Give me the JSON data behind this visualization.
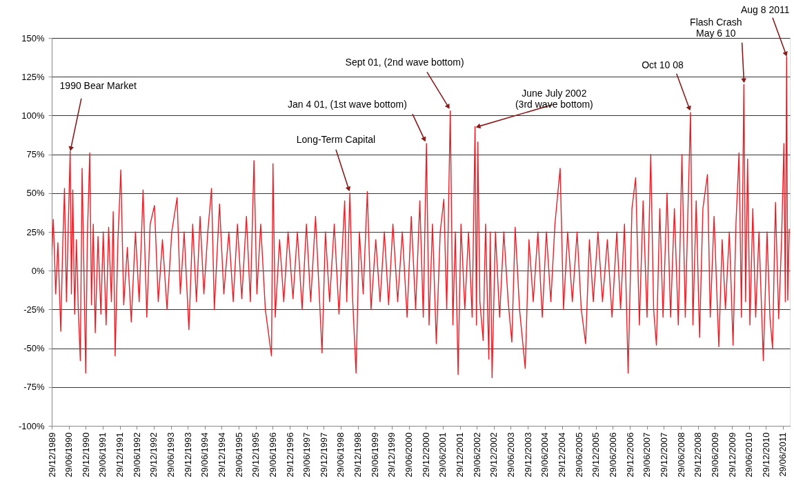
{
  "chart_data": {
    "type": "line",
    "x": [
      "1989-12-29",
      "1990-01-15",
      "1990-02-10",
      "1990-03-05",
      "1990-04-05",
      "1990-04-25",
      "1990-05-15",
      "1990-06-05",
      "1990-06-25",
      "1990-07-15",
      "1990-07-28",
      "1990-08-12",
      "1990-09-01",
      "1990-09-20",
      "1990-10-10",
      "1990-11-01",
      "1990-11-20",
      "1990-12-29",
      "1991-01-15",
      "1991-02-10",
      "1991-03-01",
      "1991-03-20",
      "1991-04-10",
      "1991-05-10",
      "1991-06-10",
      "1991-07-05",
      "1991-08-05",
      "1991-09-01",
      "1991-10-01",
      "1991-10-20",
      "1991-11-10",
      "1991-12-10",
      "1992-01-10",
      "1992-02-10",
      "1992-03-20",
      "1992-05-01",
      "1992-06-15",
      "1992-07-25",
      "1992-09-05",
      "1992-10-15",
      "1992-11-20",
      "1993-01-05",
      "1993-02-15",
      "1993-04-01",
      "1993-05-20",
      "1993-07-10",
      "1993-09-05",
      "1993-10-10",
      "1993-11-20",
      "1994-01-10",
      "1994-02-20",
      "1994-04-01",
      "1994-05-10",
      "1994-06-20",
      "1994-08-01",
      "1994-09-10",
      "1994-10-10",
      "1994-12-05",
      "1995-01-20",
      "1995-03-15",
      "1995-05-01",
      "1995-06-15",
      "1995-08-01",
      "1995-09-20",
      "1995-11-01",
      "1995-12-10",
      "1996-01-10",
      "1996-02-20",
      "1996-04-10",
      "1996-06-15",
      "1996-07-01",
      "1996-07-25",
      "1996-09-10",
      "1996-10-25",
      "1996-12-10",
      "1997-02-01",
      "1997-03-20",
      "1997-05-10",
      "1997-06-25",
      "1997-08-10",
      "1997-10-01",
      "1997-12-10",
      "1998-01-15",
      "1998-03-01",
      "1998-04-20",
      "1998-06-10",
      "1998-08-10",
      "1998-09-01",
      "1998-10-05",
      "1998-11-01",
      "1998-12-10",
      "1999-01-15",
      "1999-02-25",
      "1999-04-10",
      "1999-05-20",
      "1999-07-10",
      "1999-08-25",
      "1999-10-10",
      "1999-11-25",
      "2000-01-10",
      "2000-03-01",
      "2000-04-20",
      "2000-06-10",
      "2000-07-25",
      "2000-09-10",
      "2000-10-25",
      "2000-12-01",
      "2001-01-04",
      "2001-02-01",
      "2001-03-10",
      "2001-04-20",
      "2001-06-01",
      "2001-07-10",
      "2001-08-10",
      "2001-09-17",
      "2001-10-15",
      "2001-11-10",
      "2001-12-10",
      "2002-01-10",
      "2002-02-20",
      "2002-04-01",
      "2002-05-10",
      "2002-06-10",
      "2002-06-25",
      "2002-07-10",
      "2002-08-01",
      "2002-09-05",
      "2002-10-01",
      "2002-11-05",
      "2002-11-20",
      "2002-12-10",
      "2003-01-15",
      "2003-03-01",
      "2003-04-15",
      "2003-06-01",
      "2003-07-10",
      "2003-08-15",
      "2003-10-01",
      "2003-12-01",
      "2004-01-10",
      "2004-02-25",
      "2004-04-15",
      "2004-06-01",
      "2004-07-15",
      "2004-09-01",
      "2004-10-15",
      "2004-12-10",
      "2005-01-15",
      "2005-03-01",
      "2005-04-20",
      "2005-06-10",
      "2005-07-25",
      "2005-09-10",
      "2005-10-20",
      "2005-12-01",
      "2006-01-20",
      "2006-03-10",
      "2006-05-01",
      "2006-06-20",
      "2006-08-10",
      "2006-09-20",
      "2006-11-01",
      "2006-12-10",
      "2007-01-20",
      "2007-03-01",
      "2007-04-10",
      "2007-05-20",
      "2007-07-01",
      "2007-08-10",
      "2007-09-10",
      "2007-10-10",
      "2007-11-15",
      "2007-12-20",
      "2008-02-01",
      "2008-03-10",
      "2008-04-20",
      "2008-06-01",
      "2008-07-10",
      "2008-08-15",
      "2008-09-15",
      "2008-10-10",
      "2008-11-05",
      "2008-12-10",
      "2009-01-15",
      "2009-02-20",
      "2009-04-10",
      "2009-05-10",
      "2009-06-20",
      "2009-08-10",
      "2009-09-15",
      "2009-10-20",
      "2009-12-01",
      "2010-01-10",
      "2010-02-10",
      "2010-03-15",
      "2010-04-10",
      "2010-05-06",
      "2010-05-25",
      "2010-06-15",
      "2010-07-10",
      "2010-08-10",
      "2010-09-10",
      "2010-10-15",
      "2010-12-01",
      "2011-01-10",
      "2011-02-10",
      "2011-03-10",
      "2011-04-10",
      "2011-05-15",
      "2011-06-15",
      "2011-07-10",
      "2011-07-25",
      "2011-08-08",
      "2011-08-20",
      "2011-09-05"
    ],
    "series": [
      {
        "color": "#ee1c25",
        "values": [
          10,
          33,
          -15,
          18,
          -39,
          14,
          53,
          -20,
          30,
          77,
          -15,
          52,
          -28,
          20,
          -25,
          -58,
          66,
          -66,
          20,
          76,
          -22,
          30,
          -40,
          22,
          -28,
          25,
          -35,
          28,
          -20,
          38,
          -55,
          20,
          65,
          -22,
          15,
          -33,
          25,
          -20,
          52,
          -30,
          30,
          42,
          -20,
          20,
          -25,
          25,
          47,
          -15,
          25,
          -38,
          30,
          -20,
          35,
          -15,
          25,
          53,
          -25,
          43,
          -15,
          25,
          -20,
          30,
          -18,
          35,
          -20,
          71,
          -15,
          30,
          -25,
          -55,
          69,
          -30,
          20,
          -20,
          25,
          -18,
          25,
          -25,
          30,
          -20,
          35,
          -53,
          25,
          -20,
          30,
          -28,
          45,
          -20,
          50,
          -15,
          -66,
          25,
          -15,
          51,
          -25,
          20,
          -20,
          25,
          -22,
          30,
          -20,
          25,
          -30,
          35,
          -25,
          45,
          -30,
          82,
          -35,
          30,
          -47,
          25,
          46,
          -25,
          103,
          -35,
          25,
          -67,
          30,
          -25,
          25,
          -30,
          93,
          -35,
          83,
          -20,
          -45,
          30,
          -57,
          25,
          -69,
          25,
          -30,
          25,
          -20,
          -46,
          28,
          -25,
          -63,
          20,
          -20,
          25,
          -30,
          25,
          -20,
          30,
          66,
          -25,
          25,
          -20,
          25,
          -25,
          -47,
          20,
          -20,
          25,
          -20,
          20,
          -30,
          25,
          -25,
          30,
          -66,
          40,
          60,
          -35,
          45,
          -30,
          75,
          -25,
          -48,
          40,
          -30,
          50,
          -30,
          40,
          -35,
          75,
          -30,
          45,
          102,
          -35,
          45,
          -43,
          40,
          62,
          -30,
          35,
          -49,
          20,
          -25,
          25,
          -48,
          30,
          76,
          -30,
          120,
          -20,
          72,
          -35,
          40,
          -30,
          25,
          -58,
          25,
          -30,
          -50,
          44,
          -31,
          20,
          82,
          -20,
          138,
          -19,
          27
        ]
      }
    ],
    "xlim": [
      "1989-12-29",
      "2011-09-12"
    ],
    "xticks": [
      {
        "value": "1989-12-29",
        "label": "29/12/1989"
      },
      {
        "value": "1990-06-29",
        "label": "29/06/1990"
      },
      {
        "value": "1990-12-29",
        "label": "29/12/1990"
      },
      {
        "value": "1991-06-29",
        "label": "29/06/1991"
      },
      {
        "value": "1991-12-29",
        "label": "29/12/1991"
      },
      {
        "value": "1992-06-29",
        "label": "29/06/1992"
      },
      {
        "value": "1992-12-29",
        "label": "29/12/1992"
      },
      {
        "value": "1993-06-29",
        "label": "29/06/1993"
      },
      {
        "value": "1993-12-29",
        "label": "29/12/1993"
      },
      {
        "value": "1994-06-29",
        "label": "29/06/1994"
      },
      {
        "value": "1994-12-29",
        "label": "29/12/1994"
      },
      {
        "value": "1995-06-29",
        "label": "29/06/1995"
      },
      {
        "value": "1995-12-29",
        "label": "29/12/1995"
      },
      {
        "value": "1996-06-29",
        "label": "29/06/1996"
      },
      {
        "value": "1996-12-29",
        "label": "29/12/1996"
      },
      {
        "value": "1997-06-29",
        "label": "29/06/1997"
      },
      {
        "value": "1997-12-29",
        "label": "29/12/1997"
      },
      {
        "value": "1998-06-29",
        "label": "29/06/1998"
      },
      {
        "value": "1998-12-29",
        "label": "29/12/1998"
      },
      {
        "value": "1999-06-29",
        "label": "29/06/1999"
      },
      {
        "value": "1999-12-29",
        "label": "29/12/1999"
      },
      {
        "value": "2000-06-29",
        "label": "29/06/2000"
      },
      {
        "value": "2000-12-29",
        "label": "29/12/2000"
      },
      {
        "value": "2001-06-29",
        "label": "29/06/2001"
      },
      {
        "value": "2001-12-29",
        "label": "29/12/2001"
      },
      {
        "value": "2002-06-29",
        "label": "29/06/2002"
      },
      {
        "value": "2002-12-29",
        "label": "29/12/2002"
      },
      {
        "value": "2003-06-29",
        "label": "29/06/2003"
      },
      {
        "value": "2003-12-29",
        "label": "29/12/2003"
      },
      {
        "value": "2004-06-29",
        "label": "29/06/2004"
      },
      {
        "value": "2004-12-29",
        "label": "29/12/2004"
      },
      {
        "value": "2005-06-29",
        "label": "29/06/2005"
      },
      {
        "value": "2005-12-29",
        "label": "29/12/2005"
      },
      {
        "value": "2006-06-29",
        "label": "29/06/2006"
      },
      {
        "value": "2006-12-29",
        "label": "29/12/2006"
      },
      {
        "value": "2007-06-29",
        "label": "29/06/2007"
      },
      {
        "value": "2007-12-29",
        "label": "29/12/2007"
      },
      {
        "value": "2008-06-29",
        "label": "29/06/2008"
      },
      {
        "value": "2008-12-29",
        "label": "29/12/2008"
      },
      {
        "value": "2009-06-29",
        "label": "29/06/2009"
      },
      {
        "value": "2009-12-29",
        "label": "29/12/2009"
      },
      {
        "value": "2010-06-29",
        "label": "29/06/2010"
      },
      {
        "value": "2010-12-29",
        "label": "29/12/2010"
      },
      {
        "value": "2011-06-29",
        "label": "29/06/2011"
      }
    ],
    "ylim": [
      -100,
      150
    ],
    "yticks": [
      {
        "value": -100,
        "label": "-100%"
      },
      {
        "value": -75,
        "label": "-75%"
      },
      {
        "value": -50,
        "label": "-50%"
      },
      {
        "value": -25,
        "label": "-25%"
      },
      {
        "value": 0,
        "label": "0%"
      },
      {
        "value": 25,
        "label": "25%"
      },
      {
        "value": 50,
        "label": "50%"
      },
      {
        "value": 75,
        "label": "75%"
      },
      {
        "value": 100,
        "label": "100%"
      },
      {
        "value": 125,
        "label": "125%"
      },
      {
        "value": 150,
        "label": "150%"
      }
    ],
    "grid": "y",
    "legend": false,
    "marker": "none",
    "line_style": "solid",
    "annotations": [
      {
        "text": "1990 Bear Market",
        "x": "1990-07-15",
        "y": 77
      },
      {
        "text": "Long-Term Capital",
        "x": "1998-10-05",
        "y": 50
      },
      {
        "text": "Jan 4 01, (1st wave bottom)",
        "x": "2001-01-04",
        "y": 82
      },
      {
        "text": "Sept 01, (2nd wave bottom)",
        "x": "2001-09-17",
        "y": 103
      },
      {
        "text": "June July 2002\n(3rd wave bottom)",
        "x": "2002-06-10",
        "y": 93
      },
      {
        "text": "Oct 10 08",
        "x": "2008-10-10",
        "y": 102
      },
      {
        "text": "Flash Crash\nMay 6 10",
        "x": "2010-05-06",
        "y": 120
      },
      {
        "text": "Aug 8 2011",
        "x": "2011-08-08",
        "y": 138
      }
    ]
  }
}
